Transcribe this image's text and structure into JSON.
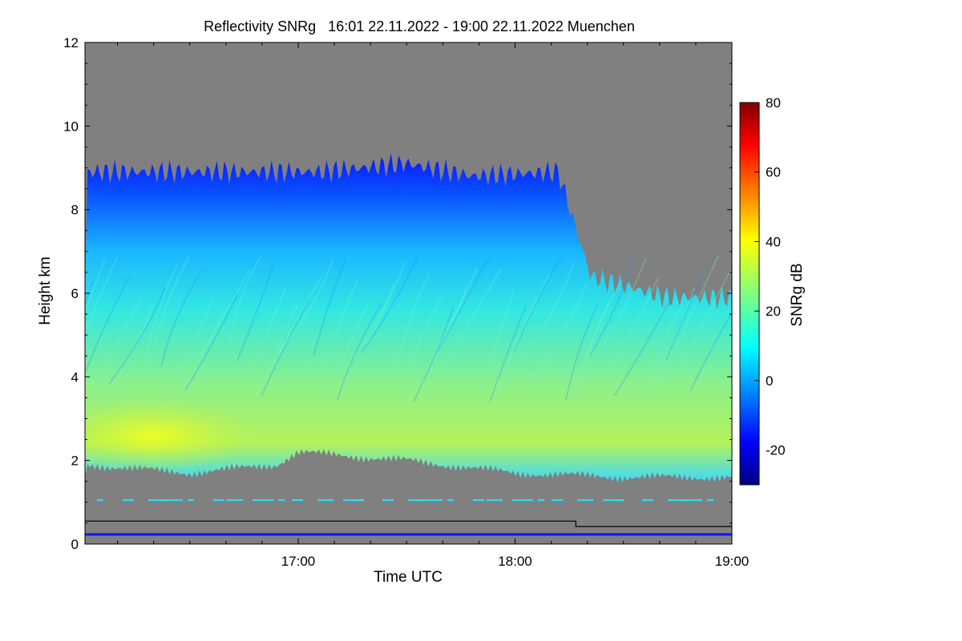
{
  "chart_data": {
    "type": "heatmap",
    "title": "Reflectivity SNRg   16:01 22.11.2022 - 19:00 22.11.2022 Muenchen",
    "xlabel": "Time UTC",
    "ylabel": "Height km",
    "colorbar_label": "SNRg dB",
    "x_range": [
      "16:01",
      "19:00"
    ],
    "x_ticks": [
      "17:00",
      "18:00",
      "19:00"
    ],
    "y_range": [
      0,
      12
    ],
    "y_ticks": [
      0,
      2,
      4,
      6,
      8,
      10,
      12
    ],
    "colorbar_range": [
      -30,
      80
    ],
    "colorbar_ticks": [
      -20,
      0,
      20,
      40,
      60,
      80
    ],
    "colormap": "jet",
    "missing_value_color": "#808080",
    "grid": false,
    "colorbar_position": "right",
    "cloud_layer": {
      "base_km": [
        [
          16.02,
          1.9
        ],
        [
          16.5,
          1.7
        ],
        [
          16.9,
          1.9
        ],
        [
          17.0,
          2.2
        ],
        [
          17.5,
          2.0
        ],
        [
          18.0,
          1.7
        ],
        [
          18.5,
          1.6
        ],
        [
          19.0,
          1.6
        ]
      ],
      "top_km": [
        [
          16.02,
          8.9
        ],
        [
          16.6,
          8.9
        ],
        [
          17.1,
          8.9
        ],
        [
          17.5,
          9.1
        ],
        [
          17.8,
          8.8
        ],
        [
          18.2,
          8.9
        ],
        [
          18.35,
          6.4
        ],
        [
          18.7,
          5.9
        ],
        [
          19.0,
          5.9
        ]
      ],
      "peak_snrg_db": 35,
      "peak_location": [
        "16:20",
        "2.6 km"
      ]
    }
  }
}
